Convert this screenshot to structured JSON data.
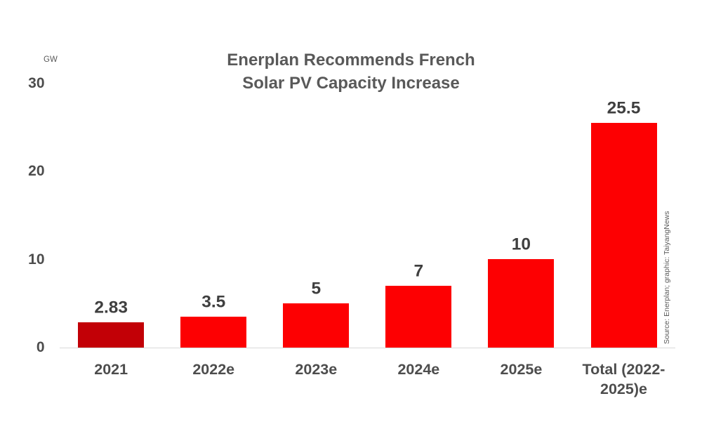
{
  "chart_data": {
    "type": "bar",
    "title": "Enerplan Recommends French Solar PV Capacity Increase",
    "title_lines": [
      "Enerplan Recommends French",
      "Solar PV Capacity Increase"
    ],
    "unit_label": "GW",
    "ylabel": "GW",
    "categories": [
      "2021",
      "2022e",
      "2023e",
      "2024e",
      "2025e",
      "Total (2022-2025)e"
    ],
    "values": [
      2.83,
      3.5,
      5,
      7,
      10,
      25.5
    ],
    "value_labels": [
      "2.83",
      "3.5",
      "5",
      "7",
      "10",
      "25.5"
    ],
    "bar_colors": [
      "#C20006",
      "#FD0002",
      "#FD0002",
      "#FD0002",
      "#FD0002",
      "#FD0002"
    ],
    "yticks": [
      0,
      10,
      20,
      30
    ],
    "ylim": [
      0,
      30
    ],
    "grid": "off",
    "legend": "none",
    "source_note": "Source: Enerplan; graphic: TaiyangNews"
  },
  "colors": {
    "bar_red": "#FD0002",
    "bar_dark_red": "#C20006",
    "axis_line": "#d9d9d9",
    "title_text": "#595959",
    "label_text": "#4d4d4d",
    "value_text": "#3f3f3f"
  }
}
